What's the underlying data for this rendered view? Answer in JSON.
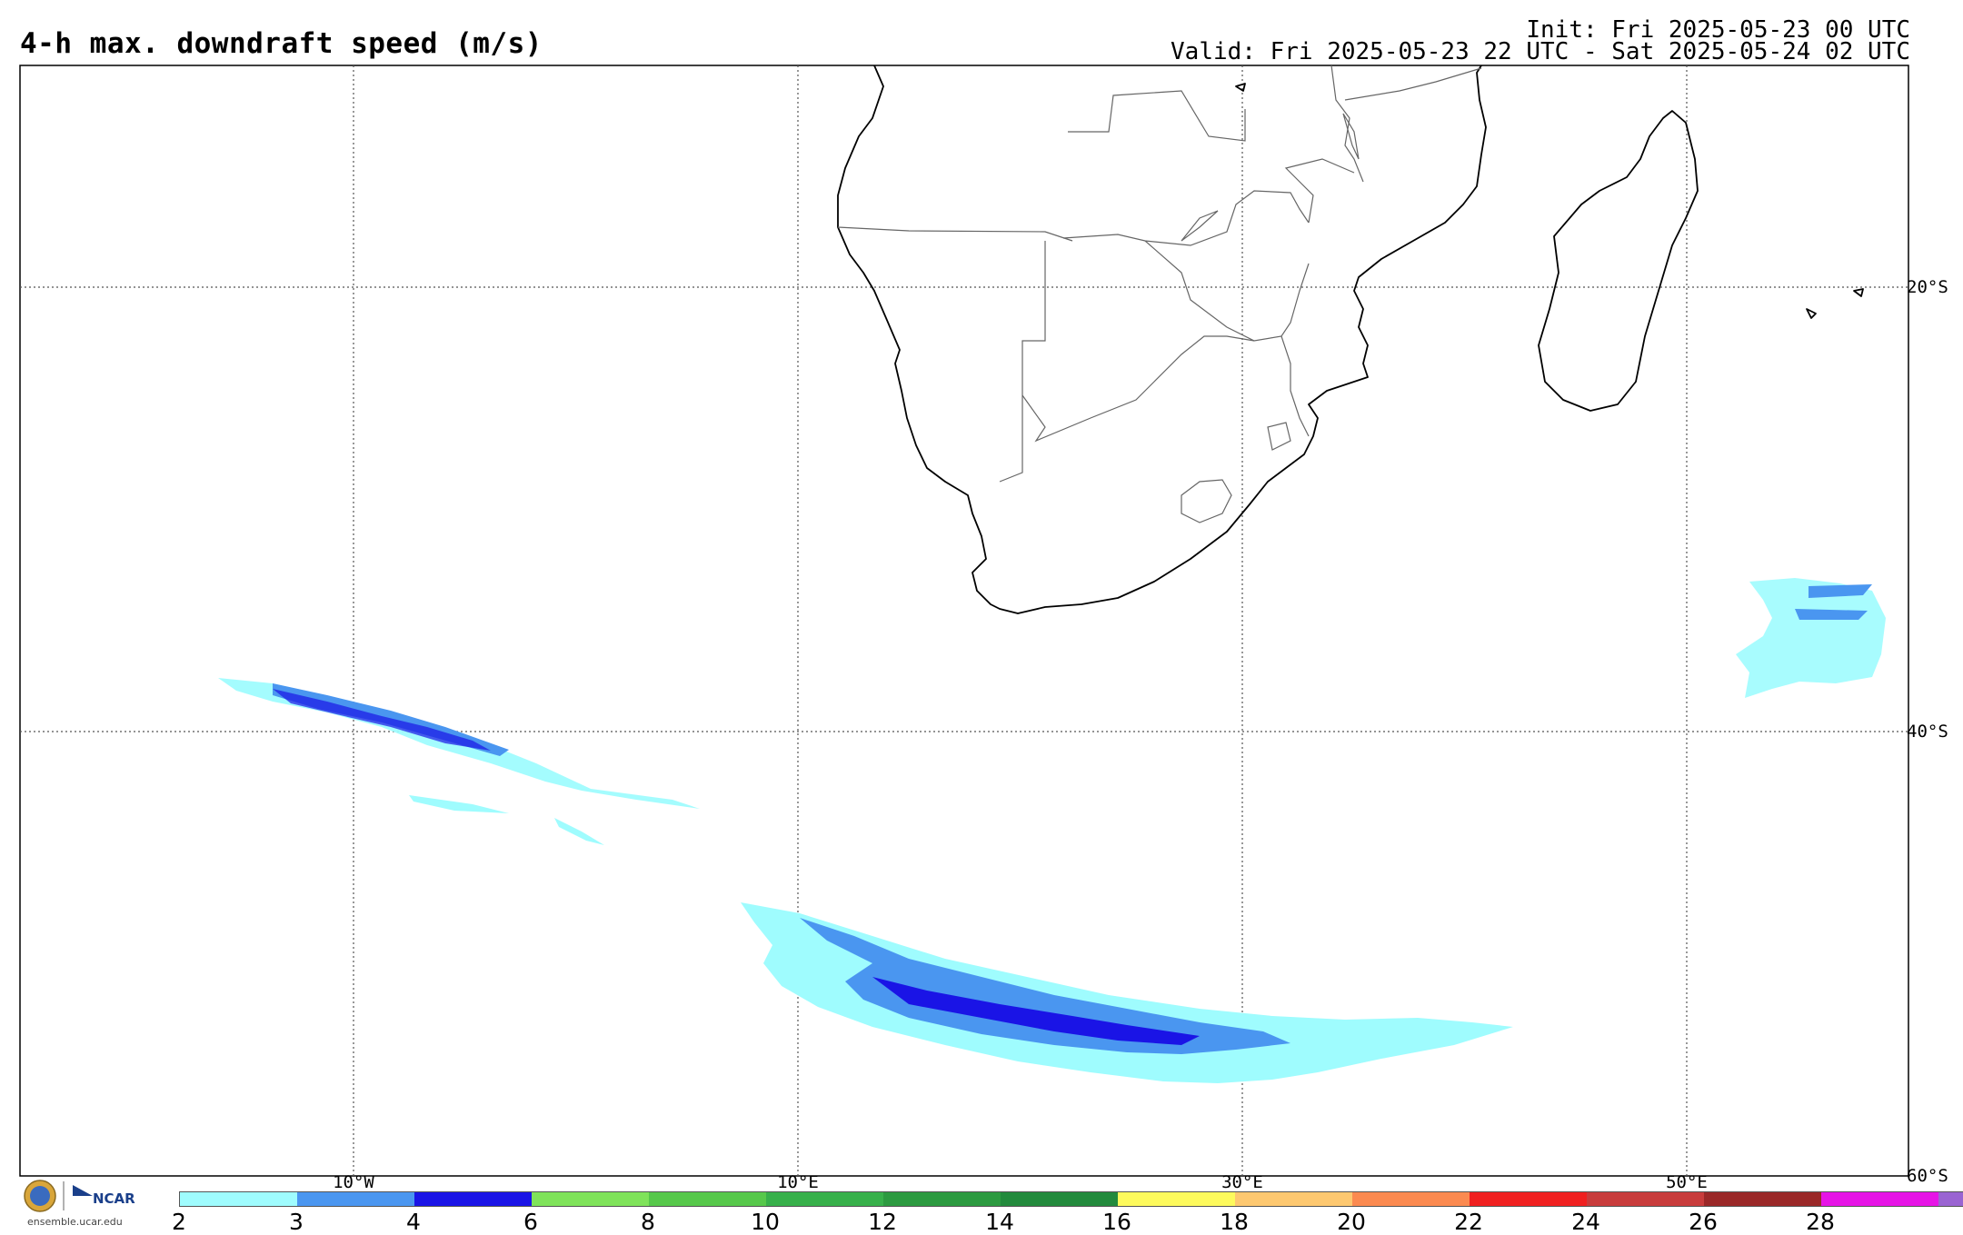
{
  "header": {
    "title": "4-h max. downdraft speed (m/s)",
    "init": "Init: Fri 2025-05-23 00 UTC",
    "valid": "Valid: Fri 2025-05-23 22 UTC - Sat 2025-05-24 02 UTC"
  },
  "map": {
    "region": "Southern Africa / South Atlantic / SW Indian Ocean",
    "longitude_labels": [
      "10°W",
      "10°E",
      "30°E",
      "50°E"
    ],
    "latitude_labels": [
      "20°S",
      "40°S",
      "60°S"
    ],
    "gridlines": "dotted"
  },
  "colorbar": {
    "ticks": [
      "2",
      "3",
      "4",
      "6",
      "8",
      "10",
      "12",
      "14",
      "16",
      "18",
      "20",
      "22",
      "24",
      "26",
      "28"
    ],
    "colors": [
      "#9ffcfe",
      "#4a96f0",
      "#1a14e6",
      "#7fe35a",
      "#56c84a",
      "#37b04a",
      "#2c9a40",
      "#228a3c",
      "#fdfa5c",
      "#fdc870",
      "#fb8a50",
      "#f02020",
      "#c83c3c",
      "#9a2828",
      "#e614e6",
      "#9a64d2"
    ]
  },
  "footer": {
    "logo_org": "NCAR",
    "site": "ensemble.ucar.edu"
  }
}
